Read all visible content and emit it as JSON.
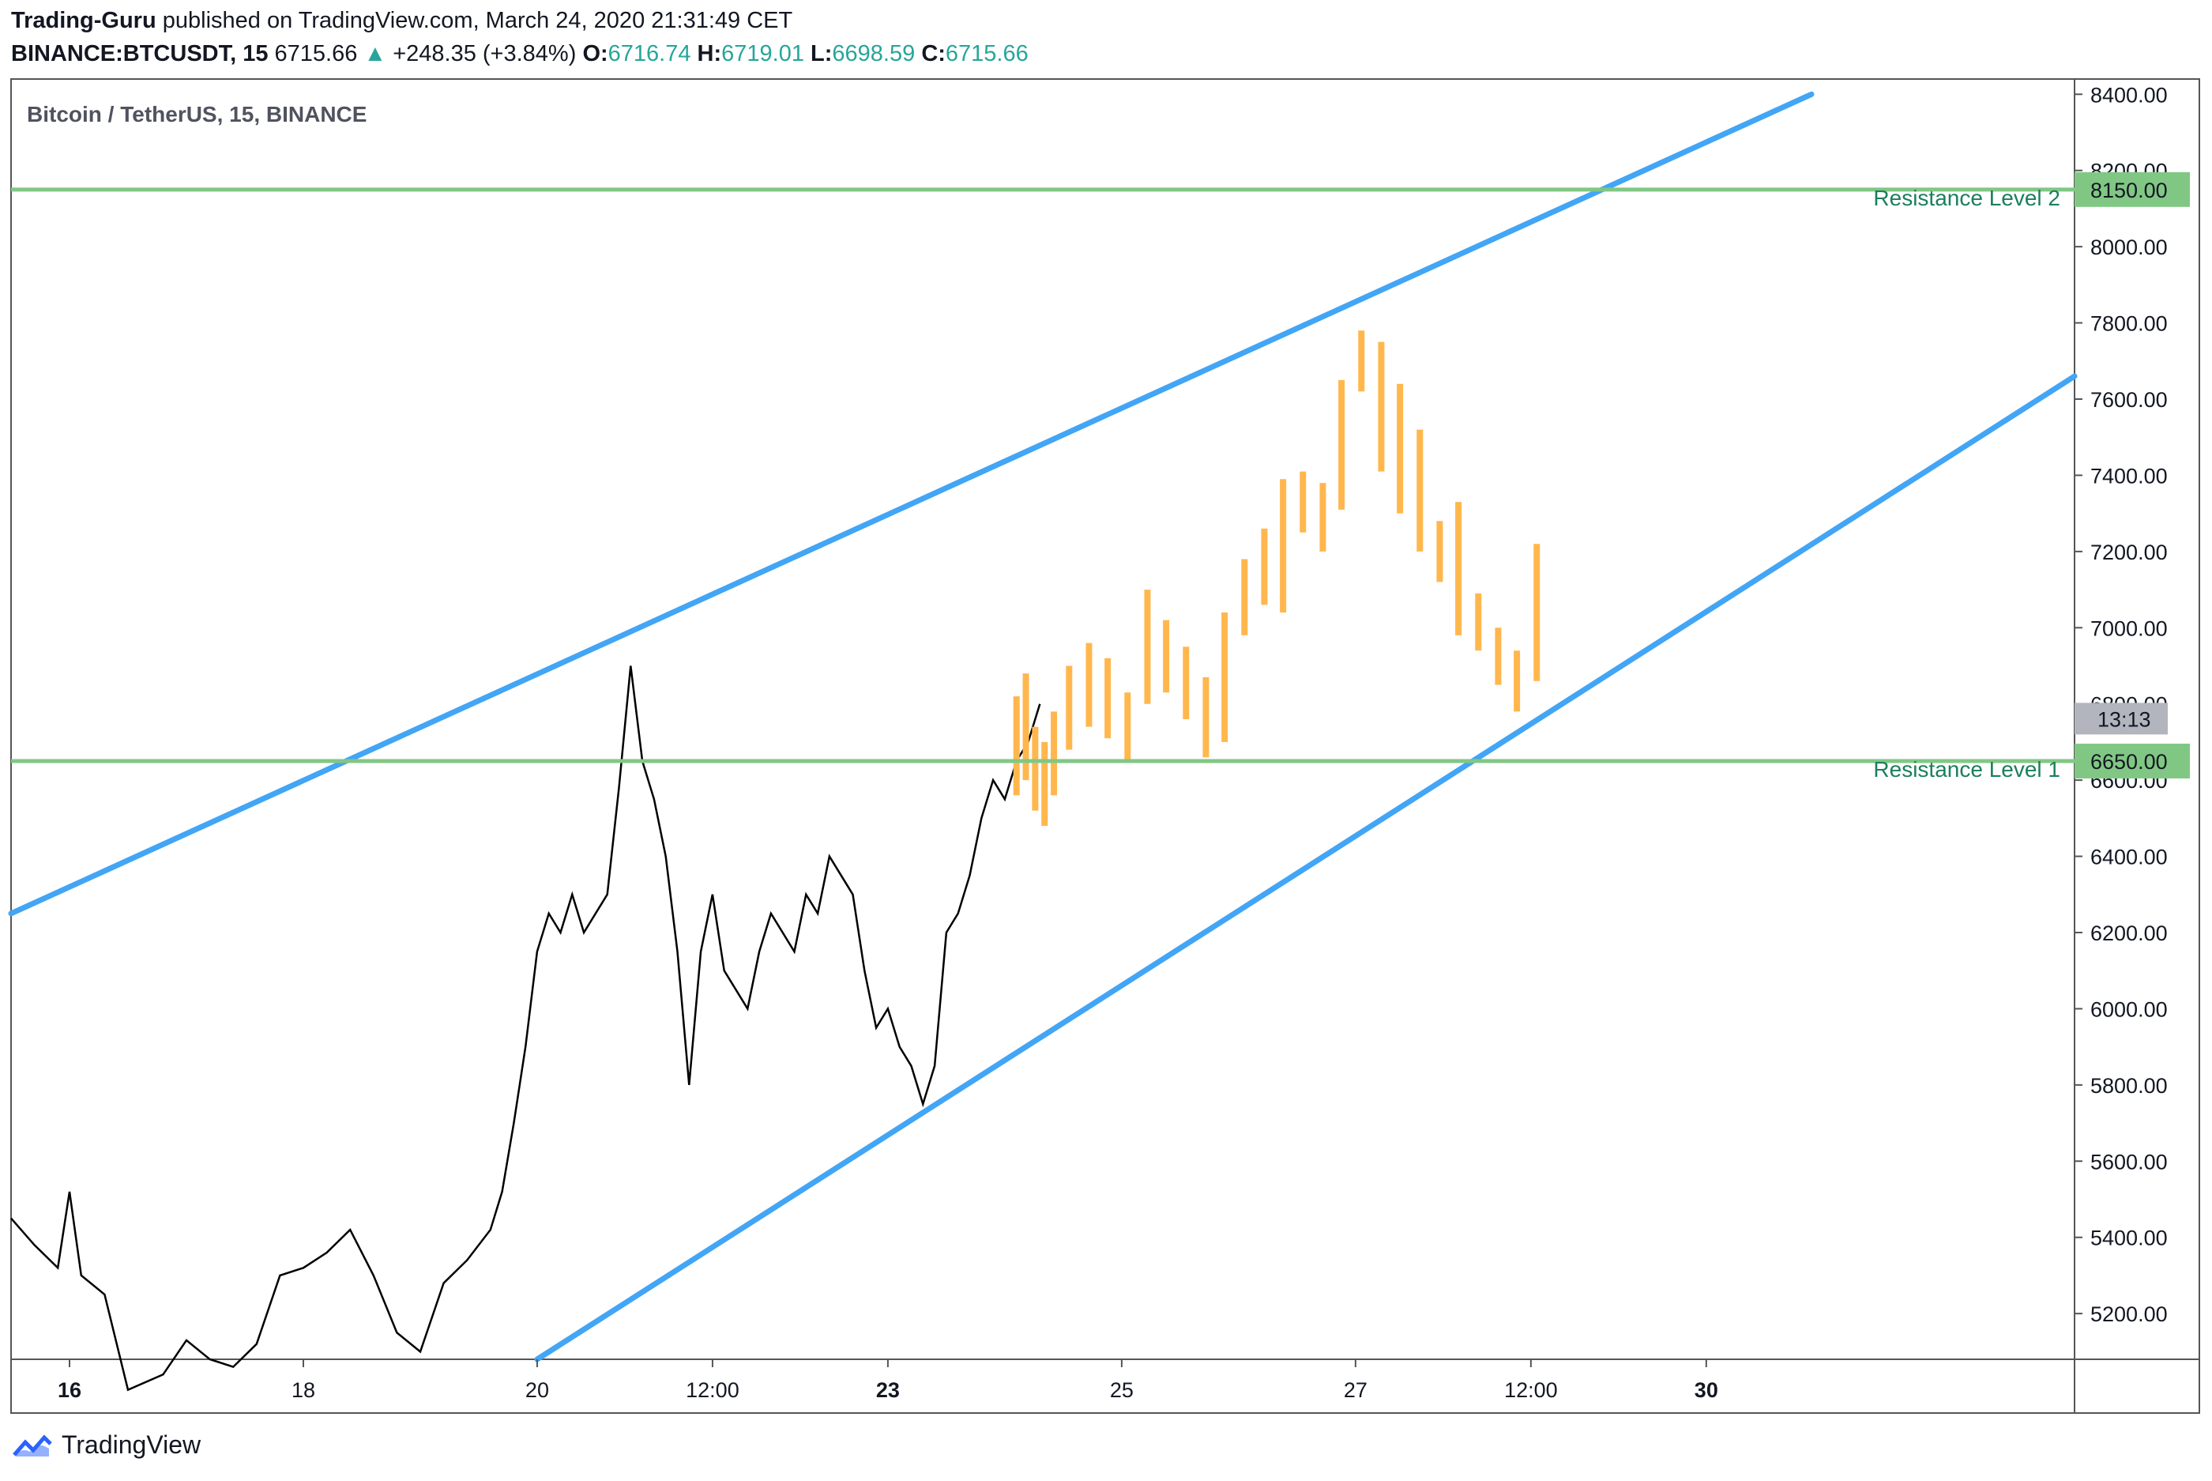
{
  "header": {
    "author": "Trading-Guru",
    "published": "published on TradingView.com, March 24, 2020 21:31:49 CET",
    "symbol": "BINANCE:BTCUSDT, 15",
    "last": "6715.66",
    "change": "+248.35 (+3.84%)",
    "o_label": "O:",
    "o": "6716.74",
    "h_label": "H:",
    "h": "6719.01",
    "l_label": "L:",
    "l": "6698.59",
    "c_label": "C:",
    "c": "6715.66"
  },
  "footer": {
    "brand": "TradingView"
  },
  "chart_data": {
    "type": "line",
    "title": "Bitcoin / TetherUS, 15, BINANCE",
    "x_ticks": [
      {
        "day": 16,
        "label": "16",
        "bold": true
      },
      {
        "day": 18,
        "label": "18",
        "bold": false
      },
      {
        "day": 20,
        "label": "20",
        "bold": false
      },
      {
        "day": 21.5,
        "label": "12:00",
        "bold": false
      },
      {
        "day": 23,
        "label": "23",
        "bold": true
      },
      {
        "day": 25,
        "label": "25",
        "bold": false
      },
      {
        "day": 27,
        "label": "27",
        "bold": false
      },
      {
        "day": 28.5,
        "label": "12:00",
        "bold": false
      },
      {
        "day": 30,
        "label": "30",
        "bold": true
      }
    ],
    "xlim_days": [
      15.5,
      33.15
    ],
    "ylim": [
      5080,
      8440
    ],
    "y_ticks": [
      5200,
      5400,
      5600,
      5800,
      6000,
      6200,
      6400,
      6600,
      6800,
      7000,
      7200,
      7400,
      7600,
      7800,
      8000,
      8200,
      8400
    ],
    "y_tick_labels": [
      "5200.00",
      "5400.00",
      "5600.00",
      "5800.00",
      "6000.00",
      "6200.00",
      "6400.00",
      "6600.00",
      "6800.00",
      "7000.00",
      "7200.00",
      "7400.00",
      "7600.00",
      "7800.00",
      "8000.00",
      "8200.00",
      "8400.00"
    ],
    "price_series": {
      "name": "BTCUSDT 15m",
      "color": "#000000",
      "points": [
        [
          15.5,
          5450
        ],
        [
          15.7,
          5380
        ],
        [
          15.9,
          5320
        ],
        [
          16.0,
          5520
        ],
        [
          16.1,
          5300
        ],
        [
          16.3,
          5250
        ],
        [
          16.5,
          5000
        ],
        [
          16.8,
          5040
        ],
        [
          17.0,
          5130
        ],
        [
          17.2,
          5080
        ],
        [
          17.4,
          5060
        ],
        [
          17.6,
          5120
        ],
        [
          17.8,
          5300
        ],
        [
          18.0,
          5320
        ],
        [
          18.2,
          5360
        ],
        [
          18.4,
          5420
        ],
        [
          18.6,
          5300
        ],
        [
          18.8,
          5150
        ],
        [
          19.0,
          5100
        ],
        [
          19.2,
          5280
        ],
        [
          19.4,
          5340
        ],
        [
          19.6,
          5420
        ],
        [
          19.7,
          5520
        ],
        [
          19.8,
          5700
        ],
        [
          19.9,
          5900
        ],
        [
          20.0,
          6150
        ],
        [
          20.1,
          6250
        ],
        [
          20.2,
          6200
        ],
        [
          20.3,
          6300
        ],
        [
          20.4,
          6200
        ],
        [
          20.5,
          6250
        ],
        [
          20.6,
          6300
        ],
        [
          20.7,
          6580
        ],
        [
          20.8,
          6900
        ],
        [
          20.9,
          6650
        ],
        [
          21.0,
          6550
        ],
        [
          21.1,
          6400
        ],
        [
          21.2,
          6150
        ],
        [
          21.3,
          5800
        ],
        [
          21.4,
          6150
        ],
        [
          21.5,
          6300
        ],
        [
          21.6,
          6100
        ],
        [
          21.7,
          6050
        ],
        [
          21.8,
          6000
        ],
        [
          21.9,
          6150
        ],
        [
          22.0,
          6250
        ],
        [
          22.1,
          6200
        ],
        [
          22.2,
          6150
        ],
        [
          22.3,
          6300
        ],
        [
          22.4,
          6250
        ],
        [
          22.5,
          6400
        ],
        [
          22.6,
          6350
        ],
        [
          22.7,
          6300
        ],
        [
          22.8,
          6100
        ],
        [
          22.9,
          5950
        ],
        [
          23.0,
          6000
        ],
        [
          23.1,
          5900
        ],
        [
          23.2,
          5850
        ],
        [
          23.3,
          5750
        ],
        [
          23.4,
          5850
        ],
        [
          23.5,
          6200
        ],
        [
          23.6,
          6250
        ],
        [
          23.7,
          6350
        ],
        [
          23.8,
          6500
        ],
        [
          23.9,
          6600
        ],
        [
          24.0,
          6550
        ],
        [
          24.1,
          6650
        ],
        [
          24.2,
          6700
        ],
        [
          24.3,
          6800
        ]
      ],
      "last_candles": [
        {
          "day": 24.1,
          "open": 6560,
          "close": 6820
        },
        {
          "day": 24.18,
          "open": 6600,
          "close": 6880
        },
        {
          "day": 24.26,
          "open": 6520,
          "close": 6740
        },
        {
          "day": 24.34,
          "open": 6480,
          "close": 6700
        },
        {
          "day": 24.42,
          "open": 6560,
          "close": 6780
        }
      ]
    },
    "projection": {
      "name": "",
      "color": "#ffb74d",
      "bars": [
        [
          24.55,
          6680,
          6900
        ],
        [
          24.72,
          6740,
          6960
        ],
        [
          24.88,
          6710,
          6920
        ],
        [
          25.05,
          6650,
          6830
        ],
        [
          25.22,
          6800,
          7100
        ],
        [
          25.38,
          6830,
          7020
        ],
        [
          25.55,
          6760,
          6950
        ],
        [
          25.72,
          6660,
          6870
        ],
        [
          25.88,
          6700,
          7040
        ],
        [
          26.05,
          6980,
          7180
        ],
        [
          26.22,
          7060,
          7260
        ],
        [
          26.38,
          7040,
          7390
        ],
        [
          26.55,
          7250,
          7410
        ],
        [
          26.72,
          7200,
          7380
        ],
        [
          26.88,
          7310,
          7650
        ],
        [
          27.05,
          7620,
          7780
        ],
        [
          27.22,
          7410,
          7750
        ],
        [
          27.38,
          7300,
          7640
        ],
        [
          27.55,
          7200,
          7520
        ],
        [
          27.72,
          7120,
          7280
        ],
        [
          27.88,
          6980,
          7330
        ],
        [
          28.05,
          6940,
          7090
        ],
        [
          28.22,
          6850,
          7000
        ],
        [
          28.38,
          6780,
          6940
        ],
        [
          28.55,
          6860,
          7220
        ]
      ]
    },
    "channel_lines": [
      {
        "name": "",
        "color": "#42a5f5",
        "from": [
          15.5,
          6250
        ],
        "to": [
          30.9,
          8400
        ]
      },
      {
        "name": "",
        "color": "#42a5f5",
        "from": [
          20.0,
          5080
        ],
        "to": [
          33.15,
          7660
        ]
      }
    ],
    "horizontal_levels": [
      {
        "name": "Resistance Level 2",
        "value": 8150,
        "value_label": "8150.00",
        "color": "#81c784"
      },
      {
        "name": "Resistance Level 1",
        "value": 6650,
        "value_label": "6650.00",
        "color": "#81c784"
      }
    ],
    "countdown": {
      "label": "13:13",
      "value": 6715.66
    },
    "grid": false,
    "legend": "none"
  }
}
